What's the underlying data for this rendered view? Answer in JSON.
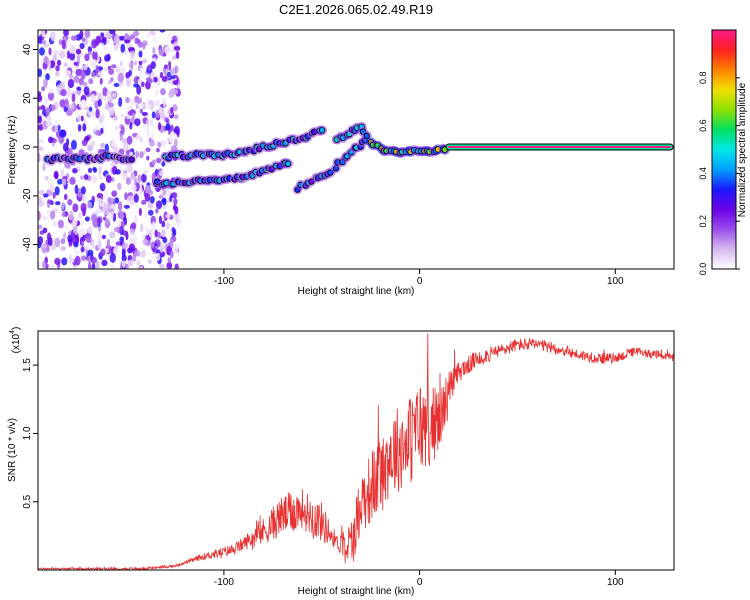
{
  "figure_title": "C2E1.2026.065.02.49.R19",
  "chart_data": [
    {
      "type": "heatmap",
      "title": "C2E1.2026.065.02.49.R19",
      "xlabel": "Height of straight line (km)",
      "ylabel": "Frequency (Hz)",
      "xlim": [
        -195,
        130
      ],
      "ylim": [
        -50,
        48
      ],
      "xticks": [
        -100,
        0,
        100
      ],
      "xtick_labels": [
        "-100",
        "0",
        "100"
      ],
      "yticks": [
        -40,
        -20,
        0,
        20,
        40
      ],
      "ytick_labels": [
        "-40",
        "-20",
        "0",
        "20",
        "40"
      ],
      "colorbar": {
        "label": "Normalized spectral amplitude",
        "range": [
          0,
          1
        ],
        "ticks": [
          0.0,
          0.2,
          0.4,
          0.6,
          0.8
        ],
        "tick_labels": [
          "0.0",
          "0.2",
          "0.4",
          "0.6",
          "0.8"
        ],
        "colors": [
          "#ffffff",
          "#d6b8f2",
          "#9a4dea",
          "#6a00e8",
          "#1a1aff",
          "#00a0ff",
          "#00e8e8",
          "#00e060",
          "#8ee000",
          "#f0e000",
          "#ff8000",
          "#ff2020",
          "#ff1a8c"
        ]
      },
      "features": [
        {
          "name": "noise-band",
          "x_range": [
            -195,
            -123
          ],
          "y_range": [
            -50,
            48
          ],
          "amplitude": 0.3
        },
        {
          "name": "upper-track",
          "points": [
            [
              -130,
              -4
            ],
            [
              -112,
              -3
            ],
            [
              -95,
              -3
            ],
            [
              -80,
              0
            ],
            [
              -65,
              3
            ],
            [
              -55,
              5
            ],
            [
              -48,
              8
            ]
          ],
          "amplitude": 0.45
        },
        {
          "name": "lower-track",
          "points": [
            [
              -135,
              -15
            ],
            [
              -118,
              -14
            ],
            [
              -105,
              -14
            ],
            [
              -95,
              -13
            ],
            [
              -85,
              -11
            ],
            [
              -75,
              -9
            ],
            [
              -65,
              -6
            ]
          ],
          "amplitude": 0.42
        },
        {
          "name": "mid-track",
          "points": [
            [
              -62,
              -17
            ],
            [
              -55,
              -14
            ],
            [
              -45,
              -10
            ],
            [
              -38,
              -4
            ],
            [
              -32,
              0
            ],
            [
              -26,
              3
            ]
          ],
          "amplitude": 0.45
        },
        {
          "name": "left-spot",
          "points": [
            [
              -190,
              -5
            ],
            [
              -175,
              -5
            ],
            [
              -160,
              -4
            ],
            [
              -145,
              -5
            ]
          ],
          "amplitude": 0.35
        },
        {
          "name": "rising-track",
          "points": [
            [
              -42,
              3
            ],
            [
              -36,
              6
            ],
            [
              -30,
              8
            ],
            [
              -25,
              4
            ]
          ],
          "amplitude": 0.5
        },
        {
          "name": "converge-track",
          "points": [
            [
              -25,
              2
            ],
            [
              -18,
              -1
            ],
            [
              -10,
              -2
            ],
            [
              -4,
              -2
            ],
            [
              4,
              -2
            ],
            [
              10,
              -1
            ],
            [
              15,
              0
            ]
          ],
          "amplitude": 0.7
        },
        {
          "name": "carrier-line",
          "points": [
            [
              15,
              0
            ],
            [
              128,
              0
            ]
          ],
          "amplitude": 1.0
        }
      ]
    },
    {
      "type": "line",
      "xlabel": "Height of straight line (km)",
      "ylabel": "SNR (10 * v/v)",
      "y_multiplier_label": "(x10",
      "y_multiplier_exponent": "4",
      "xlim": [
        -195,
        130
      ],
      "ylim": [
        0,
        1.75
      ],
      "xticks": [
        -100,
        0,
        100
      ],
      "xtick_labels": [
        "-100",
        "0",
        "100"
      ],
      "yticks": [
        0.5,
        1.0,
        1.5
      ],
      "ytick_labels": [
        "0.5",
        "1.0",
        "1.5"
      ],
      "series": [
        {
          "name": "SNR",
          "color": "#e83030",
          "envelope": [
            [
              -195,
              0.01
            ],
            [
              -140,
              0.01
            ],
            [
              -125,
              0.03
            ],
            [
              -110,
              0.1
            ],
            [
              -95,
              0.15
            ],
            [
              -80,
              0.28
            ],
            [
              -70,
              0.4
            ],
            [
              -60,
              0.45
            ],
            [
              -50,
              0.35
            ],
            [
              -42,
              0.2
            ],
            [
              -35,
              0.18
            ],
            [
              -30,
              0.5
            ],
            [
              -25,
              0.6
            ],
            [
              -20,
              0.7
            ],
            [
              -15,
              0.85
            ],
            [
              -10,
              0.9
            ],
            [
              -5,
              0.95
            ],
            [
              0,
              1.05
            ],
            [
              5,
              1.05
            ],
            [
              10,
              1.1
            ],
            [
              15,
              1.3
            ],
            [
              20,
              1.45
            ],
            [
              30,
              1.55
            ],
            [
              40,
              1.6
            ],
            [
              50,
              1.65
            ],
            [
              60,
              1.65
            ],
            [
              70,
              1.62
            ],
            [
              80,
              1.58
            ],
            [
              90,
              1.55
            ],
            [
              100,
              1.55
            ],
            [
              110,
              1.6
            ],
            [
              120,
              1.58
            ],
            [
              130,
              1.55
            ]
          ],
          "spread": [
            [
              -195,
              0.01
            ],
            [
              -120,
              0.02
            ],
            [
              -110,
              0.05
            ],
            [
              -90,
              0.1
            ],
            [
              -70,
              0.3
            ],
            [
              -50,
              0.3
            ],
            [
              -42,
              0.1
            ],
            [
              -35,
              0.4
            ],
            [
              -20,
              0.6
            ],
            [
              0,
              0.7
            ],
            [
              10,
              0.5
            ],
            [
              20,
              0.15
            ],
            [
              40,
              0.1
            ],
            [
              130,
              0.06
            ]
          ]
        }
      ]
    }
  ]
}
